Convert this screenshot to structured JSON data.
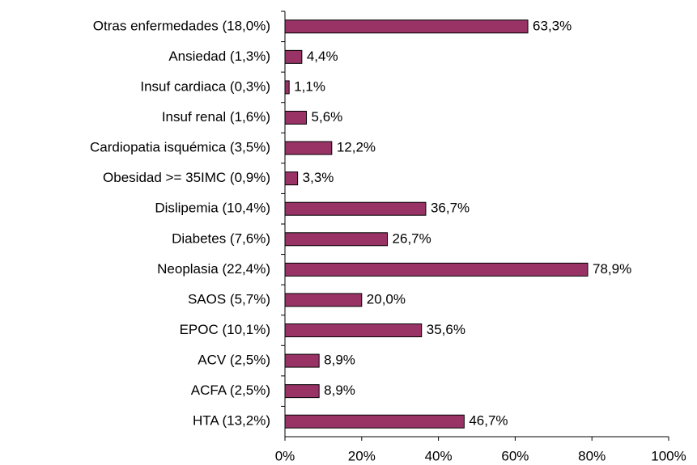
{
  "chart_data": {
    "type": "barh",
    "categories": [
      "Otras enfermedades (18,0%)",
      "Ansiedad (1,3%)",
      "Insuf cardiaca (0,3%)",
      "Insuf renal (1,6%)",
      "Cardiopatia isquémica (3,5%)",
      "Obesidad >= 35IMC (0,9%)",
      "Dislipemia (10,4%)",
      "Diabetes (7,6%)",
      "Neoplasia (22,4%)",
      "SAOS (5,7%)",
      "EPOC (10,1%)",
      "ACV (2,5%)",
      "ACFA (2,5%)",
      "HTA (13,2%)"
    ],
    "values": [
      63.3,
      4.4,
      1.1,
      5.6,
      12.2,
      3.3,
      36.7,
      26.7,
      78.9,
      20.0,
      35.6,
      8.9,
      8.9,
      46.7
    ],
    "value_labels": [
      "63,3%",
      "4,4%",
      "1,1%",
      "5,6%",
      "12,2%",
      "3,3%",
      "36,7%",
      "26,7%",
      "78,9%",
      "20,0%",
      "35,6%",
      "8,9%",
      "8,9%",
      "46,7%"
    ],
    "color": "#993366",
    "xlim": [
      0,
      100
    ],
    "xticks": [
      {
        "value": 0,
        "label": "0%"
      },
      {
        "value": 20,
        "label": "20%"
      },
      {
        "value": 40,
        "label": "40%"
      },
      {
        "value": 60,
        "label": "60%"
      },
      {
        "value": 80,
        "label": "80%"
      },
      {
        "value": 100,
        "label": "100%"
      }
    ]
  }
}
